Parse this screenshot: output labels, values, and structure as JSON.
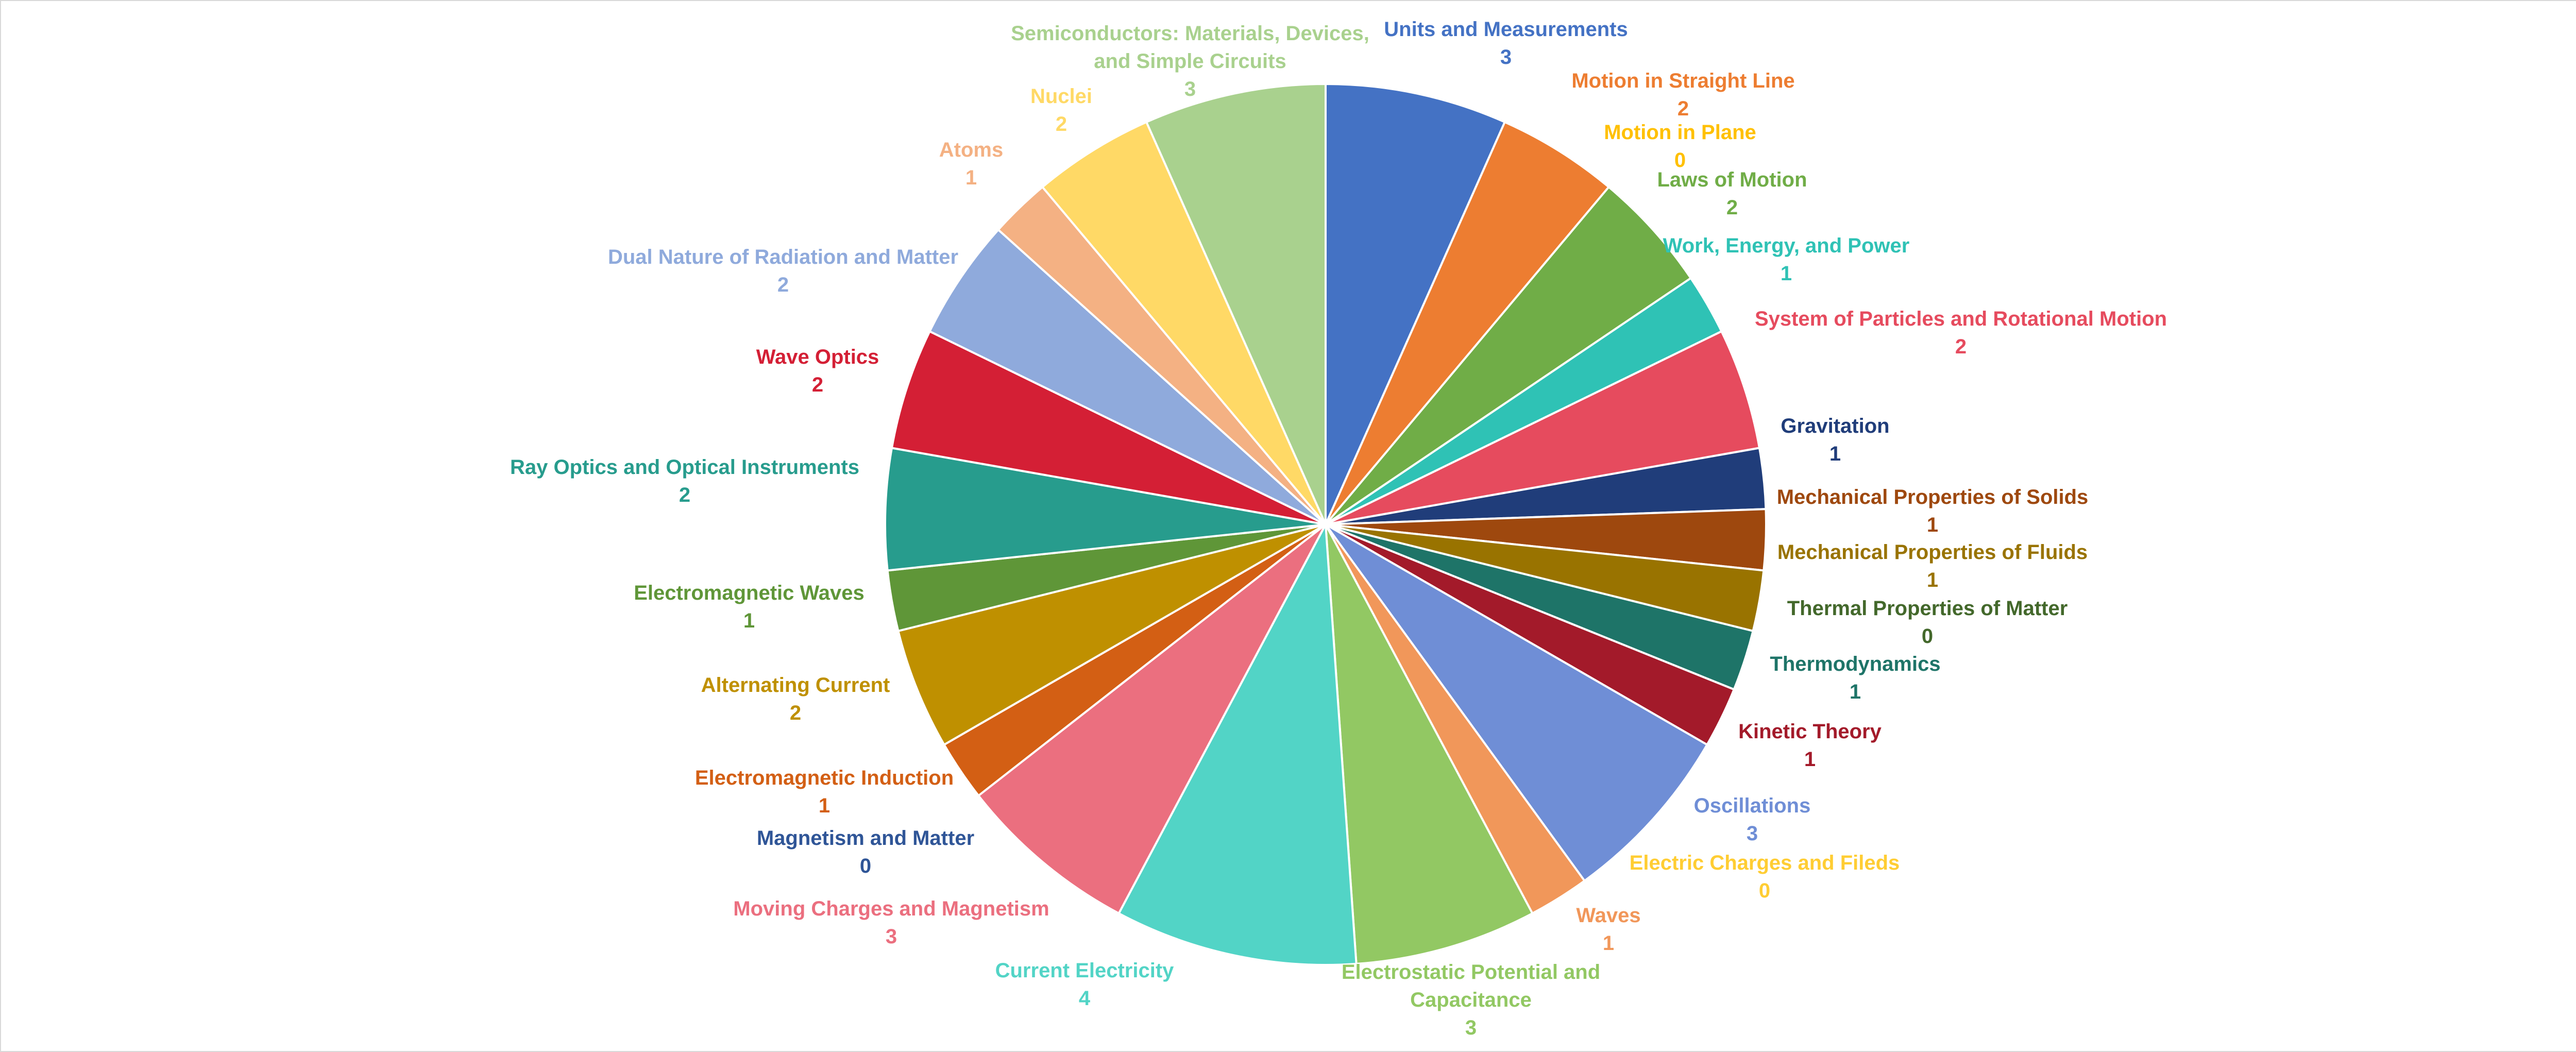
{
  "chart_data": {
    "type": "pie",
    "title": "",
    "start_angle_deg": 0,
    "direction": "clockwise",
    "legend": "none",
    "labels_show": "category name and value",
    "slices": [
      {
        "name": "Units and Measurements",
        "value": 3,
        "color": "#4472C4"
      },
      {
        "name": "Motion in Straight Line",
        "value": 2,
        "color": "#ED7D31"
      },
      {
        "name": "Motion in Plane",
        "value": 0,
        "color": "#FFC000"
      },
      {
        "name": "Laws of Motion",
        "value": 2,
        "color": "#70AD47"
      },
      {
        "name": "Work, Energy, and Power",
        "value": 1,
        "color": "#2FC2B5"
      },
      {
        "name": "System of Particles and Rotational Motion",
        "value": 2,
        "color": "#E64B5E"
      },
      {
        "name": "Gravitation",
        "value": 1,
        "color": "#203D7A"
      },
      {
        "name": "Mechanical Properties of Solids",
        "value": 1,
        "color": "#9E480E"
      },
      {
        "name": "Mechanical Properties of Fluids",
        "value": 1,
        "color": "#997300"
      },
      {
        "name": "Thermal Properties of Matter",
        "value": 0,
        "color": "#43682B"
      },
      {
        "name": "Thermodynamics",
        "value": 1,
        "color": "#1E7468"
      },
      {
        "name": "Kinetic Theory",
        "value": 1,
        "color": "#A31A2A"
      },
      {
        "name": "Oscillations",
        "value": 3,
        "color": "#6F8ED6"
      },
      {
        "name": "Electric Charges and Fileds",
        "value": 0,
        "color": "#FFCD33"
      },
      {
        "name": "Waves",
        "value": 1,
        "color": "#F1975A"
      },
      {
        "name": "Electrostatic Potential and Capacitance",
        "value": 3,
        "color": "#92C863"
      },
      {
        "name": "Current Electricity",
        "value": 4,
        "color": "#52D4C6"
      },
      {
        "name": "Moving Charges and Magnetism",
        "value": 3,
        "color": "#EB6F7F"
      },
      {
        "name": "Magnetism and Matter",
        "value": 0,
        "color": "#2F5597"
      },
      {
        "name": "Electromagnetic Induction",
        "value": 1,
        "color": "#D35F14"
      },
      {
        "name": "Alternating Current",
        "value": 2,
        "color": "#BF9000"
      },
      {
        "name": "Electromagnetic Waves",
        "value": 1,
        "color": "#5F9638"
      },
      {
        "name": "Ray Optics and Optical Instruments",
        "value": 2,
        "color": "#279C8D"
      },
      {
        "name": "Wave Optics",
        "value": 2,
        "color": "#D41F35"
      },
      {
        "name": "Dual Nature of Radiation and Matter",
        "value": 2,
        "color": "#8FAADC"
      },
      {
        "name": "Atoms",
        "value": 1,
        "color": "#F4B183"
      },
      {
        "name": "Nuclei",
        "value": 2,
        "color": "#FFD966"
      },
      {
        "name": "Semiconductors: Materials, Devices, and Simple Circuits",
        "value": 3,
        "color": "#A9D18E"
      }
    ]
  }
}
